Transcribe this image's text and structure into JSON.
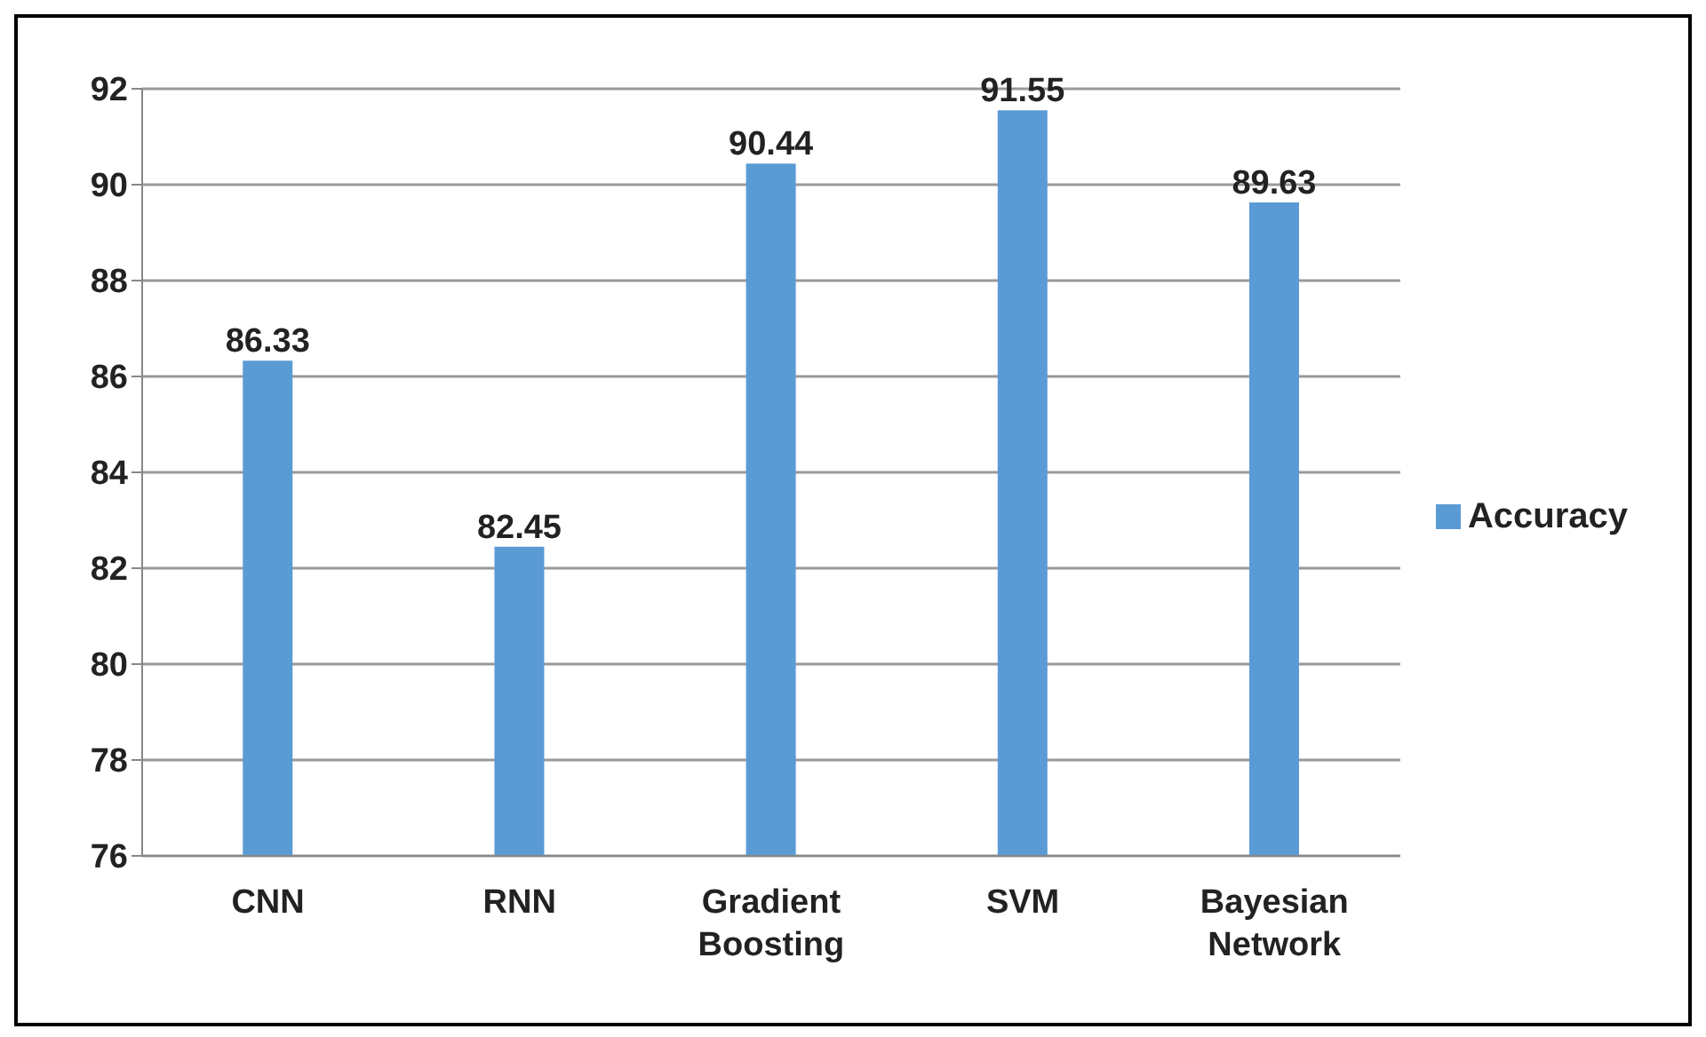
{
  "chart_data": {
    "type": "bar",
    "categories": [
      "CNN",
      "RNN",
      "Gradient Boosting",
      "SVM",
      "Bayesian Network"
    ],
    "series": [
      {
        "name": "Accuracy",
        "color": "#5b9bd5",
        "values": [
          86.33,
          82.45,
          90.44,
          91.55,
          89.63
        ]
      }
    ],
    "ylim": [
      76,
      92
    ],
    "yticks": [
      76,
      78,
      80,
      82,
      84,
      86,
      88,
      90,
      92
    ],
    "grid": "y",
    "legend": "right",
    "data_labels": true
  }
}
